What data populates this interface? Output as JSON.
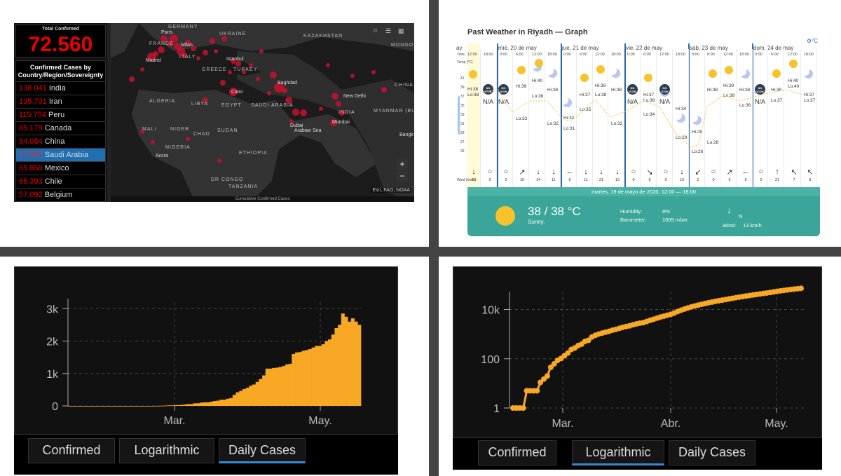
{
  "dashboard": {
    "total_label": "Total Confirmed",
    "total_value": "72.560",
    "list_header": "Confirmed Cases by Country/Region/Sovereignty",
    "rows": [
      {
        "count": "138.041",
        "name": "India"
      },
      {
        "count": "135.701",
        "name": "Iran"
      },
      {
        "count": "115.754",
        "name": "Peru"
      },
      {
        "count": "85.179",
        "name": "Canada"
      },
      {
        "count": "84.084",
        "name": "China"
      },
      {
        "count": "72.560",
        "name": "Saudi Arabia"
      },
      {
        "count": "65.856",
        "name": "Mexico"
      },
      {
        "count": "65.393",
        "name": "Chile"
      },
      {
        "count": "57.092",
        "name": "Belgium"
      }
    ],
    "selected_row": 5,
    "map_labels": {
      "germany": "GERMANY",
      "france": "FRANCE",
      "ukraine": "UKRAINE",
      "kazakhstan": "KAZAKHSTAN",
      "mongolia": "MONGO",
      "china": "CHINA",
      "algeria": "ALGERIA",
      "libya": "LIBYA",
      "egypt": "EGYPT",
      "saudi": "SAUDI ARABIA",
      "india": "INDIA",
      "myanmar": "MYANMAR (BURMA)",
      "mali": "MALI",
      "niger": "NIGER",
      "chad": "CHAD",
      "sudan": "SUDAN",
      "nigeria": "NIGERIA",
      "ethiopia": "ETHIOPIA",
      "drcongo": "DR CONGO",
      "tanzania": "TANZANIA",
      "greece": "GREECE",
      "turkey": "TURKEY",
      "italy": "ITALY"
    },
    "cities": {
      "paris": "Paris",
      "milan": "Milan",
      "madrid": "Madrid",
      "istanbul": "Istanbul",
      "cairo": "Cairo",
      "baghdad": "Baghdad",
      "dubai": "Dubai",
      "newdelhi": "New Delhi",
      "mumbai": "Mumbai",
      "accra": "Accra",
      "bangk": "Bangk",
      "arabiansea": "Arabian Sea"
    },
    "attribution": "Esri, FAO, NOAA",
    "map_footer": "Cumulative Confirmed Cases",
    "zoom_in": "+",
    "zoom_out": "−"
  },
  "weather": {
    "title": "Past Weather in Riyadh — Graph",
    "unit_toggle": "⚙°C",
    "time_label": "Time",
    "temp_label": "Temp (°C)",
    "wind_label": "Wind (km/h)",
    "days": [
      "ay",
      "mié, 20 de may",
      "jue, 21 de may",
      "vie, 22 de may",
      "sáb, 23 de may",
      "dom, 24 de may"
    ],
    "times": [
      "12:00",
      "18:00",
      "0:00",
      "6:00",
      "12:00",
      "18:00",
      "0:00",
      "6:00",
      "12:00",
      "18:00",
      "0:00",
      "6:00",
      "12:00",
      "18:00",
      "0:00",
      "6:00",
      "12:00",
      "18:00",
      "0:00",
      "6:00",
      "12:00",
      "18:00"
    ],
    "yticks": [
      "41",
      "39",
      "37",
      "35",
      "33",
      "31",
      "29",
      "27",
      "25"
    ],
    "hilo": [
      {
        "t": "Hi:38",
        "x": 16,
        "y": 92
      },
      {
        "t": "Lo:38",
        "x": 16,
        "y": 100
      },
      {
        "t": "Hi:39",
        "x": 85,
        "y": 88
      },
      {
        "t": "Hi:40",
        "x": 108,
        "y": 80
      },
      {
        "t": "Lo:38",
        "x": 108,
        "y": 102
      },
      {
        "t": "Lo:33",
        "x": 85,
        "y": 134
      },
      {
        "t": "Hi:38",
        "x": 130,
        "y": 93
      },
      {
        "t": "Lo:32",
        "x": 130,
        "y": 141
      },
      {
        "t": "Lo:31",
        "x": 153,
        "y": 148
      },
      {
        "t": "Hi:37",
        "x": 176,
        "y": 100
      },
      {
        "t": "Lo:38",
        "x": 198,
        "y": 100
      },
      {
        "t": "Lo:35",
        "x": 176,
        "y": 121
      },
      {
        "t": "Hi:32",
        "x": 153,
        "y": 133
      },
      {
        "t": "Hi:39",
        "x": 198,
        "y": 87
      },
      {
        "t": "Hi:38",
        "x": 221,
        "y": 93
      },
      {
        "t": "Lo:32",
        "x": 221,
        "y": 141
      },
      {
        "t": "Hi:37",
        "x": 267,
        "y": 100
      },
      {
        "t": "Lo:38",
        "x": 267,
        "y": 108
      },
      {
        "t": "Lo:34",
        "x": 267,
        "y": 128
      },
      {
        "t": "Hi:34",
        "x": 313,
        "y": 120
      },
      {
        "t": "Hi:29",
        "x": 336,
        "y": 153
      },
      {
        "t": "Lo:29",
        "x": 313,
        "y": 161
      },
      {
        "t": "Lo:28",
        "x": 358,
        "y": 168
      },
      {
        "t": "Lo:26",
        "x": 336,
        "y": 181
      },
      {
        "t": "Hi:38",
        "x": 358,
        "y": 93
      },
      {
        "t": "Hi:39",
        "x": 381,
        "y": 87
      },
      {
        "t": "Lo:38",
        "x": 381,
        "y": 101
      },
      {
        "t": "Hi:38",
        "x": 404,
        "y": 93
      },
      {
        "t": "Lo:36",
        "x": 404,
        "y": 115
      },
      {
        "t": "Hi:38",
        "x": 449,
        "y": 93
      },
      {
        "t": "Hi:40",
        "x": 473,
        "y": 80
      },
      {
        "t": "Lo:40",
        "x": 473,
        "y": 88
      },
      {
        "t": "Hi:37",
        "x": 496,
        "y": 100
      },
      {
        "t": "Lo:37",
        "x": 496,
        "y": 108
      },
      {
        "t": "Lo:37",
        "x": 449,
        "y": 108
      }
    ],
    "noicons": [
      {
        "x": 38
      },
      {
        "x": 60
      },
      {
        "x": 244
      },
      {
        "x": 290
      },
      {
        "x": 426
      }
    ],
    "noicon_text": "NO ICON",
    "na": [
      {
        "x": 38
      },
      {
        "x": 60
      },
      {
        "x": 244
      },
      {
        "x": 290
      },
      {
        "x": 426
      }
    ],
    "na_text": "N/A",
    "wind_arrows": [
      "↓",
      "○",
      "○",
      "↗",
      "↓",
      "↓",
      "←",
      "↓",
      "↓",
      "↓",
      "○",
      "↘",
      "○",
      "↓",
      "↙",
      "○",
      "↗",
      "←",
      "○",
      "↑",
      "↖",
      "↖"
    ],
    "wind_values": [
      "13",
      "0",
      "0",
      "10",
      "14",
      "11",
      "6",
      "11",
      "21",
      "13",
      "0",
      "5",
      "0",
      "10",
      "2",
      "0",
      "6",
      "6",
      "0",
      "21",
      "7",
      "8"
    ],
    "panel_date": "martes, 19 de mayo de 2020, 12:00 — 18:00",
    "panel_temp": "38 / 38 °C",
    "panel_desc": "Sunny.",
    "humidity_label": "Humidity:",
    "humidity_value": "8%",
    "barometer_label": "Barometer:",
    "barometer_value": "1009 mbar",
    "wind_dir": "N",
    "wind_label2": "Wind:",
    "wind_value": "13 km/h"
  },
  "chart_daily": {
    "type": "bar",
    "title": "",
    "yticks": [
      "3k",
      "2k",
      "1k",
      "0"
    ],
    "xticks": [
      "Mar.",
      "May."
    ],
    "color": "#f9a825",
    "tabs": [
      "Confirmed",
      "Logarithmic",
      "Daily Cases"
    ],
    "active_tab": 2
  },
  "chart_log": {
    "type": "line",
    "yticks": [
      "10k",
      "100",
      "1"
    ],
    "xticks": [
      "Mar.",
      "Abr.",
      "May."
    ],
    "color": "#f9a825",
    "tabs": [
      "Confirmed",
      "Logarithmic",
      "Daily Cases"
    ],
    "active_tab": 1
  },
  "chart_data": [
    {
      "type": "bar",
      "series": [
        {
          "values": [
            0,
            0,
            0,
            0,
            0,
            0,
            0,
            0,
            0,
            0,
            0,
            0,
            0,
            0,
            0,
            0,
            0,
            0,
            0,
            0,
            0,
            0,
            0,
            0,
            0,
            0,
            2,
            2,
            5,
            10,
            15,
            15,
            20,
            25,
            30,
            40,
            55,
            55,
            80,
            80,
            100,
            110,
            110,
            130,
            150,
            160,
            190,
            190,
            220,
            240,
            340,
            420,
            460,
            520,
            560,
            620,
            660,
            740,
            830,
            940,
            1150,
            1150,
            1170,
            1180,
            1200,
            1230,
            1280,
            1300,
            1600,
            1650,
            1660,
            1700,
            1720,
            1750,
            1800,
            1850,
            1850,
            1900,
            2000,
            2050,
            2200,
            2400,
            2500,
            2850,
            2750,
            2600,
            2700,
            2600,
            2500
          ]
        }
      ],
      "yticks": [
        "3k",
        "2k",
        "1k",
        "0"
      ],
      "ylim": [
        0,
        3200
      ]
    },
    {
      "type": "line",
      "yscale": "log",
      "series": [
        {
          "values": [
            1,
            1,
            1,
            1,
            5,
            5,
            5,
            5,
            11,
            15,
            20,
            45,
            62,
            86,
            103,
            133,
            171,
            238,
            274,
            344,
            392,
            511,
            562,
            767,
            900,
            1012,
            1104,
            1203,
            1299,
            1453,
            1563,
            1720,
            1885,
            2039,
            2179,
            2402,
            2605,
            2795,
            2932,
            3287,
            3651,
            4033,
            4462,
            4934,
            5369,
            5862,
            6380,
            7142,
            8274,
            9362,
            10484,
            11631,
            12772,
            13930,
            15102,
            16299,
            17522,
            18811,
            20077,
            21402,
            22753,
            24097,
            25459,
            27011,
            28656,
            30251,
            31938,
            33731,
            35432,
            37136,
            39048,
            41014,
            42925,
            44830,
            46869,
            49176,
            52016,
            54752,
            57345,
            59854,
            62545,
            65077,
            67719,
            70161,
            72560
          ]
        }
      ],
      "yticks": [
        "10k",
        "100",
        "1"
      ]
    }
  ]
}
